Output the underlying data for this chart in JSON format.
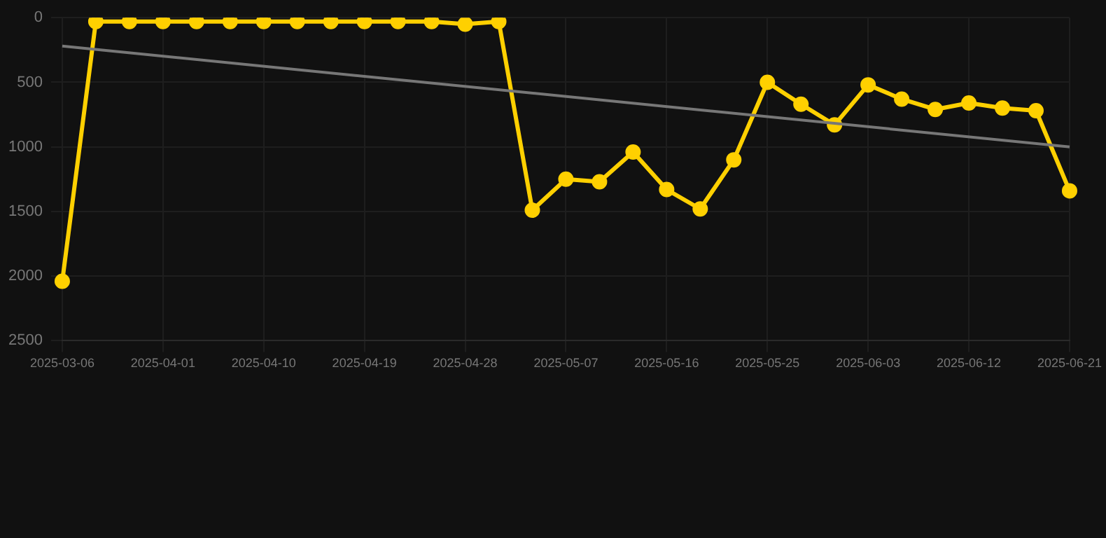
{
  "chart_data": {
    "type": "line",
    "categories": [
      "2025-03-06",
      null,
      null,
      "2025-04-01",
      null,
      null,
      "2025-04-10",
      null,
      null,
      "2025-04-19",
      null,
      null,
      "2025-04-28",
      null,
      null,
      "2025-05-07",
      null,
      null,
      "2025-05-16",
      null,
      null,
      "2025-05-25",
      null,
      null,
      "2025-06-03",
      null,
      null,
      "2025-06-12",
      null,
      null,
      "2025-06-21"
    ],
    "series": [
      {
        "color": "#ffd000",
        "marker": "circle",
        "values": [
          2040,
          30,
          30,
          30,
          30,
          30,
          30,
          30,
          30,
          30,
          30,
          30,
          50,
          30,
          1490,
          1250,
          1270,
          1040,
          1330,
          1480,
          1100,
          500,
          670,
          830,
          520,
          630,
          710,
          660,
          700,
          720,
          1340
        ]
      },
      {
        "type": "line",
        "color": "#777777",
        "marker": "none",
        "values": [
          220,
          null,
          null,
          null,
          null,
          null,
          null,
          null,
          null,
          null,
          null,
          null,
          null,
          null,
          null,
          null,
          null,
          null,
          null,
          null,
          null,
          null,
          null,
          null,
          null,
          null,
          null,
          null,
          null,
          null,
          1000
        ]
      }
    ],
    "ylim": [
      2500,
      0
    ],
    "yticks": [
      0,
      500,
      1000,
      1500,
      2000,
      2500
    ],
    "grid": true,
    "legend": false
  }
}
